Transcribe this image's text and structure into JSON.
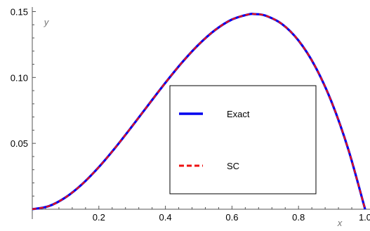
{
  "chart_data": {
    "type": "line",
    "title": "",
    "xlabel": "x",
    "ylabel": "y",
    "xlim": [
      0,
      1
    ],
    "ylim": [
      0,
      0.15
    ],
    "x_ticks": [
      0.2,
      0.4,
      0.6,
      0.8,
      1.0
    ],
    "x_tick_labels": [
      "0.2",
      "0.4",
      "0.6",
      "0.8",
      "1.0"
    ],
    "y_ticks": [
      0.05,
      0.1,
      0.15
    ],
    "y_tick_labels": [
      "0.05",
      "0.10",
      "0.15"
    ],
    "grid": false,
    "legend": {
      "placement": "center-right",
      "framed": true
    },
    "x": [
      0,
      0.05,
      0.1,
      0.15,
      0.2,
      0.25,
      0.3,
      0.35,
      0.4,
      0.45,
      0.5,
      0.55,
      0.6,
      0.65,
      0.667,
      0.7,
      0.75,
      0.8,
      0.85,
      0.9,
      0.95,
      1.0
    ],
    "series": [
      {
        "name": "Exact",
        "color": "#0000ee",
        "style": "solid",
        "values": [
          0,
          0.0024,
          0.009,
          0.0191,
          0.032,
          0.0469,
          0.063,
          0.0796,
          0.096,
          0.1114,
          0.125,
          0.1361,
          0.144,
          0.1479,
          0.1481,
          0.147,
          0.1406,
          0.128,
          0.1084,
          0.081,
          0.0451,
          0
        ]
      },
      {
        "name": "SC",
        "color": "#ee1111",
        "style": "dashed",
        "values": [
          0,
          0.0024,
          0.009,
          0.0191,
          0.032,
          0.0469,
          0.063,
          0.0796,
          0.096,
          0.1114,
          0.125,
          0.1361,
          0.144,
          0.1479,
          0.1481,
          0.147,
          0.1406,
          0.128,
          0.1084,
          0.081,
          0.0451,
          0
        ]
      }
    ]
  }
}
